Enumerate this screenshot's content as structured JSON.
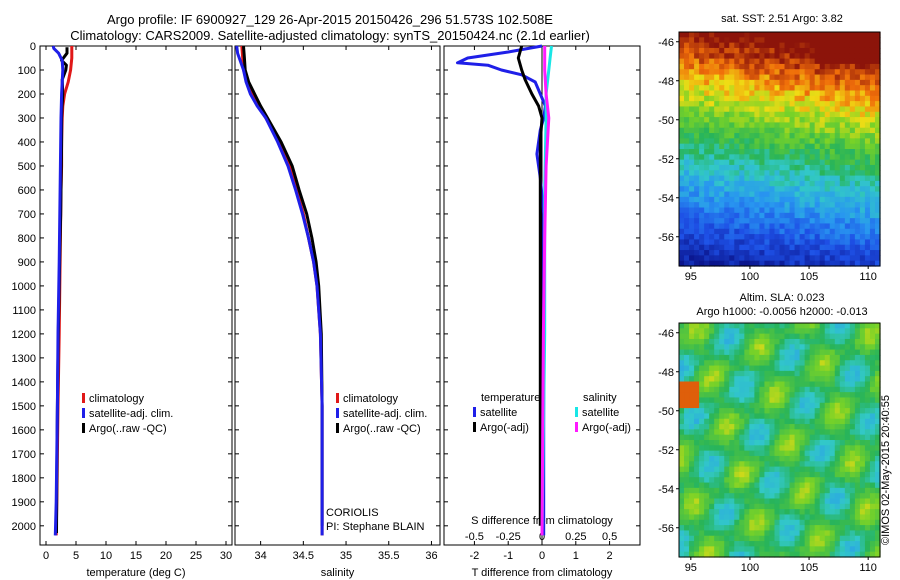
{
  "title": {
    "line1": "Argo profile: IF 6900927_129 26-Apr-2015 20150426_296 51.573S 102.508E",
    "line2": "Climatology: CARS2009. Satellite-adjusted climatology: synTS_20150424.nc (2.1d earlier)"
  },
  "colors": {
    "climatology": "#e01818",
    "satellite": "#1f1fe8",
    "argo": "#000000",
    "sal_satellite": "#19e6e6",
    "sal_argo": "#ff1aff"
  },
  "chart_data": [
    {
      "type": "line",
      "xlabel": "temperature (deg C)",
      "ylabel": "",
      "xlim": [
        -1,
        31
      ],
      "ylim": [
        2080,
        0
      ],
      "x_ticks": [
        0,
        5,
        10,
        15,
        20,
        25,
        30
      ],
      "y_ticks": [
        0,
        100,
        200,
        300,
        400,
        500,
        600,
        700,
        800,
        900,
        1000,
        1100,
        1200,
        1300,
        1400,
        1500,
        1600,
        1700,
        1800,
        1900,
        2000
      ],
      "legend": {
        "position": "lower-center",
        "entries": [
          "climatology",
          "satellite-adj. clim.",
          "Argo(..raw -QC)"
        ]
      },
      "series": [
        {
          "name": "climatology",
          "color_key": "climatology",
          "x": [
            4.3,
            4.3,
            4.1,
            3.7,
            3.1,
            2.8,
            2.7,
            2.6,
            2.6,
            2.5,
            2.45,
            2.4,
            2.3,
            2.2,
            2.0,
            1.9,
            1.8,
            1.7
          ],
          "y": [
            0,
            50,
            100,
            150,
            200,
            250,
            300,
            400,
            500,
            600,
            700,
            800,
            1000,
            1200,
            1500,
            1700,
            1900,
            2040
          ]
        },
        {
          "name": "Argo(..raw -QC)",
          "color_key": "argo",
          "x": [
            3.5,
            3.5,
            2.6,
            3.4,
            3.3,
            2.7,
            2.8,
            2.65,
            2.6,
            2.6,
            2.55,
            2.5,
            2.45,
            2.35,
            2.2,
            2.05,
            1.9,
            1.8,
            1.75
          ],
          "y": [
            5,
            30,
            60,
            80,
            100,
            140,
            200,
            260,
            300,
            400,
            500,
            600,
            700,
            800,
            1000,
            1200,
            1500,
            1800,
            2030
          ]
        },
        {
          "name": "satellite-adj. clim.",
          "color_key": "satellite",
          "x": [
            1.2,
            1.3,
            2.1,
            2.7,
            2.8,
            2.6,
            2.5,
            2.45,
            2.4,
            2.3,
            2.2,
            2.0,
            1.9,
            1.8,
            1.7,
            1.55
          ],
          "y": [
            0,
            10,
            30,
            60,
            100,
            200,
            300,
            400,
            500,
            700,
            900,
            1200,
            1500,
            1700,
            1900,
            2040
          ]
        }
      ]
    },
    {
      "type": "line",
      "xlabel": "salinity",
      "ylabel": "",
      "xlim": [
        33.7,
        36.1
      ],
      "ylim": [
        2080,
        0
      ],
      "x_ticks": [
        34,
        34.5,
        35,
        35.5,
        36
      ],
      "legend": {
        "position": "lower-center",
        "entries": [
          "climatology",
          "satellite-adj. clim.",
          "Argo(..raw -QC)"
        ]
      },
      "annotations": [
        "CORIOLIS",
        "PI: Stephane BLAIN"
      ],
      "series": [
        {
          "name": "climatology",
          "color_key": "climatology",
          "x": [
            33.78,
            33.79,
            33.8,
            33.84,
            33.9,
            33.98,
            34.06,
            34.22,
            34.34,
            34.42,
            34.5,
            34.56,
            34.62,
            34.66,
            34.7,
            34.72,
            34.72,
            34.72
          ],
          "y": [
            0,
            50,
            100,
            150,
            200,
            250,
            300,
            400,
            500,
            600,
            700,
            800,
            900,
            1000,
            1200,
            1500,
            1800,
            2040
          ]
        },
        {
          "name": "Argo(..raw -QC)",
          "color_key": "argo",
          "x": [
            33.8,
            33.81,
            33.82,
            33.86,
            33.93,
            34.0,
            34.08,
            34.24,
            34.37,
            34.45,
            34.54,
            34.6,
            34.65,
            34.68,
            34.71,
            34.72,
            34.72
          ],
          "y": [
            0,
            50,
            100,
            150,
            200,
            250,
            300,
            400,
            500,
            600,
            700,
            800,
            900,
            1000,
            1200,
            1500,
            2000
          ]
        },
        {
          "name": "satellite-adj. clim.",
          "color_key": "satellite",
          "x": [
            33.72,
            33.73,
            33.8,
            33.83,
            33.88,
            33.96,
            34.06,
            34.2,
            34.32,
            34.41,
            34.49,
            34.56,
            34.62,
            34.66,
            34.7,
            34.72,
            34.72
          ],
          "y": [
            0,
            30,
            100,
            150,
            200,
            250,
            300,
            400,
            500,
            600,
            700,
            800,
            900,
            1000,
            1200,
            1500,
            2040
          ]
        }
      ]
    },
    {
      "type": "line",
      "xlabel": "T difference from climatology",
      "xlabel_top": "S difference from climatology",
      "ylabel": "",
      "xlim": [
        -2.9,
        2.9
      ],
      "ylim": [
        2080,
        0
      ],
      "x_ticks": [
        -2,
        -1,
        0,
        1,
        2
      ],
      "x_ticks_top": [
        -0.5,
        -0.25,
        0,
        0.25,
        0.5
      ],
      "legend": {
        "position": "lower-center",
        "groups": [
          {
            "title": "temperature",
            "entries": [
              "satellite",
              "Argo(-adj)"
            ]
          },
          {
            "title": "salinity",
            "entries": [
              "satellite",
              "Argo(-adj)"
            ]
          }
        ]
      },
      "series": [
        {
          "name": "temperature satellite",
          "color_key": "satellite",
          "x": [
            0,
            -1.0,
            -2.2,
            -2.5,
            -1.6,
            -1.2,
            -0.6,
            -0.2,
            -0.05,
            0.1,
            0.05,
            -0.05,
            -0.1,
            -0.15,
            -0.1,
            -0.05,
            0.05,
            0.05,
            0.05
          ],
          "y": [
            0,
            25,
            50,
            70,
            80,
            100,
            120,
            150,
            200,
            250,
            300,
            350,
            400,
            450,
            500,
            550,
            700,
            1200,
            2040
          ]
        },
        {
          "name": "temperature Argo(-adj)",
          "color_key": "argo",
          "x": [
            -0.6,
            -0.7,
            -0.6,
            -0.5,
            -0.3,
            -0.1,
            0.0,
            -0.05,
            -0.05,
            -0.05
          ],
          "y": [
            0,
            50,
            100,
            140,
            200,
            250,
            300,
            400,
            800,
            2000
          ]
        },
        {
          "name": "salinity satellite",
          "color_key": "sal_satellite",
          "x": [
            0.07,
            0.06,
            0.05,
            0.03,
            0.03,
            0.02,
            0.02,
            0.0
          ],
          "y": [
            0,
            50,
            100,
            200,
            300,
            600,
            1200,
            2040
          ]
        },
        {
          "name": "salinity Argo(-adj)",
          "color_key": "sal_argo",
          "x": [
            0.02,
            0.02,
            0.03,
            0.05,
            0.03,
            0.02,
            0.01,
            0.0
          ],
          "y": [
            0,
            100,
            200,
            300,
            500,
            800,
            1200,
            2040
          ]
        }
      ]
    }
  ],
  "maps": [
    {
      "header": "sat. SST: 2.51 Argo: 3.82",
      "x_ticks": [
        95,
        100,
        105,
        110
      ],
      "y_ticks": [
        -46,
        -48,
        -50,
        -52,
        -54,
        -56
      ],
      "xlim": [
        94.0,
        111.0
      ],
      "ylim": [
        -57.5,
        -45.5
      ]
    },
    {
      "header_line1": "Altim. SLA: 0.023",
      "header_line2": "Argo h1000: -0.0056 h2000: -0.013",
      "x_ticks": [
        95,
        100,
        105,
        110
      ],
      "y_ticks": [
        -46,
        -48,
        -50,
        -52,
        -54,
        -56
      ],
      "xlim": [
        94.0,
        111.0
      ],
      "ylim": [
        -57.5,
        -45.5
      ]
    }
  ],
  "credit": "©IMOS 02-May-2015 20:40:55"
}
